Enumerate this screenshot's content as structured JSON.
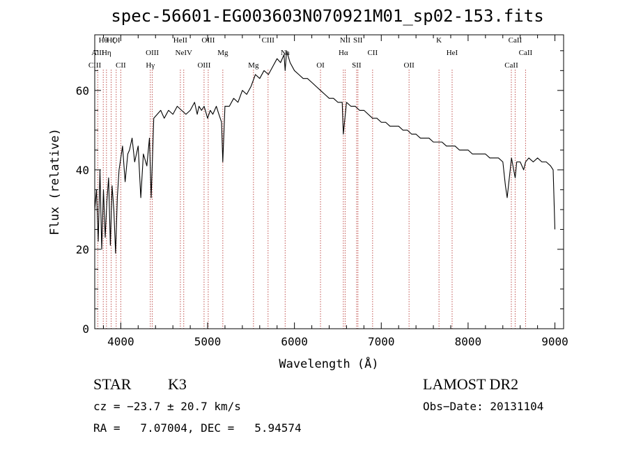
{
  "chart_data": {
    "type": "line",
    "title": "spec-56601-EG003603N070921M01_sp02-153.fits",
    "xlabel": "Wavelength (Å)",
    "ylabel": "Flux (relative)",
    "xlim": [
      3700,
      9100
    ],
    "ylim": [
      0,
      74
    ],
    "x_ticks": [
      4000,
      5000,
      6000,
      7000,
      8000,
      9000
    ],
    "y_ticks": [
      0,
      20,
      40,
      60
    ],
    "grid": false,
    "line_color": "#000000",
    "marker_color": "#c0504d",
    "series": [
      {
        "x": [
          3700,
          3720,
          3740,
          3760,
          3780,
          3800,
          3820,
          3840,
          3860,
          3880,
          3900,
          3920,
          3940,
          3960,
          3980,
          4000,
          4020,
          4050,
          4080,
          4100,
          4130,
          4160,
          4200,
          4230,
          4260,
          4300,
          4330,
          4350,
          4380,
          4420,
          4460,
          4500,
          4550,
          4600,
          4650,
          4700,
          4750,
          4800,
          4850,
          4880,
          4900,
          4930,
          4960,
          5000,
          5030,
          5060,
          5100,
          5130,
          5160,
          5175,
          5200,
          5250,
          5300,
          5350,
          5400,
          5450,
          5500,
          5550,
          5600,
          5650,
          5700,
          5750,
          5800,
          5840,
          5880,
          5893,
          5910,
          5950,
          6000,
          6050,
          6100,
          6150,
          6200,
          6250,
          6300,
          6350,
          6400,
          6450,
          6500,
          6550,
          6563,
          6600,
          6650,
          6700,
          6750,
          6800,
          6850,
          6900,
          6950,
          7000,
          7050,
          7100,
          7150,
          7200,
          7250,
          7300,
          7350,
          7400,
          7450,
          7500,
          7550,
          7600,
          7650,
          7700,
          7750,
          7800,
          7850,
          7900,
          7950,
          8000,
          8050,
          8100,
          8150,
          8200,
          8250,
          8300,
          8350,
          8400,
          8430,
          8450,
          8500,
          8542,
          8560,
          8600,
          8640,
          8662,
          8700,
          8750,
          8800,
          8850,
          8900,
          8950,
          8980,
          9000
        ],
        "y": [
          30,
          35,
          22,
          40,
          20,
          35,
          23,
          32,
          38,
          21,
          36,
          30,
          19,
          33,
          40,
          43,
          46,
          37,
          44,
          45,
          48,
          42,
          46,
          33,
          44,
          41,
          48,
          33,
          53,
          54,
          55,
          53,
          55,
          54,
          56,
          55,
          54,
          55,
          57,
          54,
          56,
          55,
          56,
          53,
          55,
          54,
          56,
          54,
          52,
          42,
          56,
          56,
          58,
          57,
          60,
          59,
          61,
          64,
          63,
          65,
          64,
          66,
          68,
          67,
          69,
          65,
          70,
          67,
          65,
          64,
          63,
          63,
          62,
          61,
          60,
          59,
          58,
          58,
          57,
          57,
          49,
          57,
          56,
          56,
          55,
          55,
          54,
          53,
          53,
          52,
          52,
          51,
          51,
          51,
          50,
          50,
          49,
          49,
          48,
          48,
          48,
          47,
          47,
          47,
          46,
          46,
          46,
          45,
          45,
          45,
          44,
          44,
          44,
          44,
          43,
          43,
          43,
          42,
          36,
          33,
          43,
          38,
          42,
          42,
          40,
          42,
          43,
          42,
          43,
          42,
          42,
          41,
          40,
          25
        ]
      }
    ],
    "line_markers": [
      {
        "label": "Hθ",
        "x": 3798
      },
      {
        "label": "AlII",
        "x": 3735
      },
      {
        "label": "CIII",
        "x": 3700
      },
      {
        "label": "Hζ",
        "x": 3889
      },
      {
        "label": "Hη",
        "x": 3835
      },
      {
        "label": "CII",
        "x": 4000
      },
      {
        "label": "OI",
        "x": 3947
      },
      {
        "label": "OIII",
        "x": 4363
      },
      {
        "label": "Hγ",
        "x": 4340
      },
      {
        "label": "HeII",
        "x": 4686
      },
      {
        "label": "NeIV",
        "x": 4725
      },
      {
        "label": "OIII",
        "x": 4959
      },
      {
        "label": "OIII",
        "x": 5007
      },
      {
        "label": "Mg",
        "x": 5175
      },
      {
        "label": "Mg",
        "x": 5528
      },
      {
        "label": "CIII",
        "x": 5696
      },
      {
        "label": "Na",
        "x": 5893
      },
      {
        "label": "OI",
        "x": 6300
      },
      {
        "label": "NII",
        "x": 6584
      },
      {
        "label": "Hα",
        "x": 6563
      },
      {
        "label": "SII",
        "x": 6716
      },
      {
        "label": "SII",
        "x": 6731
      },
      {
        "label": "CII",
        "x": 6900
      },
      {
        "label": "OII",
        "x": 7320
      },
      {
        "label": "K",
        "x": 7665
      },
      {
        "label": "HeI",
        "x": 7816
      },
      {
        "label": "CaII",
        "x": 8498
      },
      {
        "label": "CaII",
        "x": 8542
      },
      {
        "label": "CaII",
        "x": 8662
      }
    ]
  },
  "info": {
    "object_type": "STAR",
    "subclass": "K3",
    "survey": "LAMOST DR2",
    "cz": "cz = −23.7 ± 20.7 km/s",
    "obs_date": "Obs−Date: 20131104",
    "radec": "RA =   7.07004, DEC =   5.94574"
  }
}
